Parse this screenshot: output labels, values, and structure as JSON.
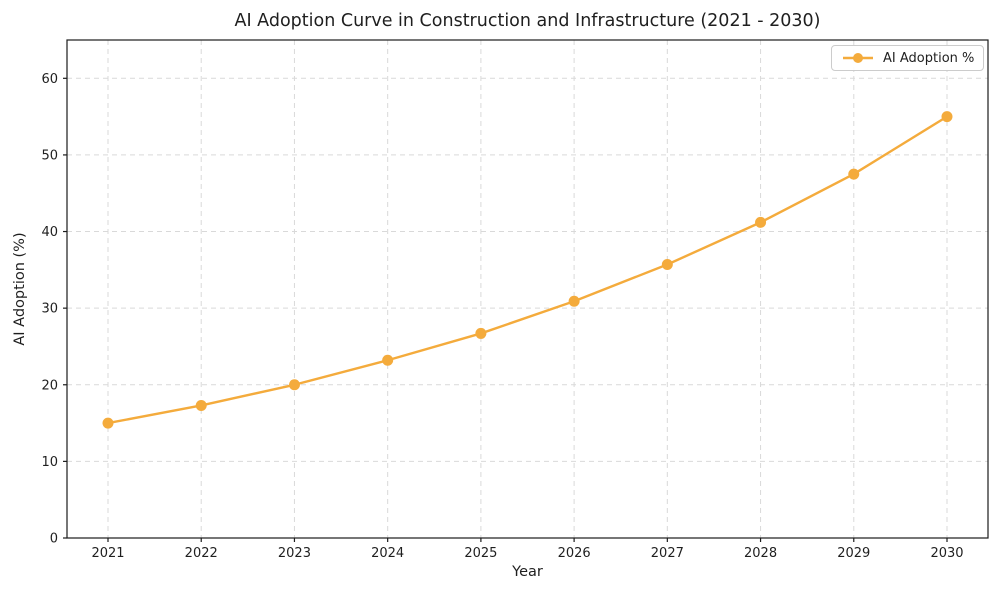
{
  "chart_data": {
    "type": "line",
    "title": "AI Adoption Curve in Construction and Infrastructure (2021 - 2030)",
    "xlabel": "Year",
    "ylabel": "AI Adoption (%)",
    "x": [
      2021,
      2022,
      2023,
      2024,
      2025,
      2026,
      2027,
      2028,
      2029,
      2030
    ],
    "series": [
      {
        "name": "AI Adoption %",
        "color": "#F4AB3C",
        "marker": "circle",
        "values": [
          15.0,
          17.3,
          20.0,
          23.2,
          26.7,
          30.9,
          35.7,
          41.2,
          47.5,
          55.0
        ]
      }
    ],
    "ylim": [
      0,
      65
    ],
    "yticks": [
      0,
      10,
      20,
      30,
      40,
      50,
      60
    ],
    "grid": true,
    "grid_linestyle": "dashed",
    "legend_position": "upper right"
  },
  "colors": {
    "line": "#F4AB3C",
    "grid": "#D9D9D9",
    "spine": "#1C1C1C",
    "text": "#1F1F1F",
    "background": "#FFFFFF"
  }
}
